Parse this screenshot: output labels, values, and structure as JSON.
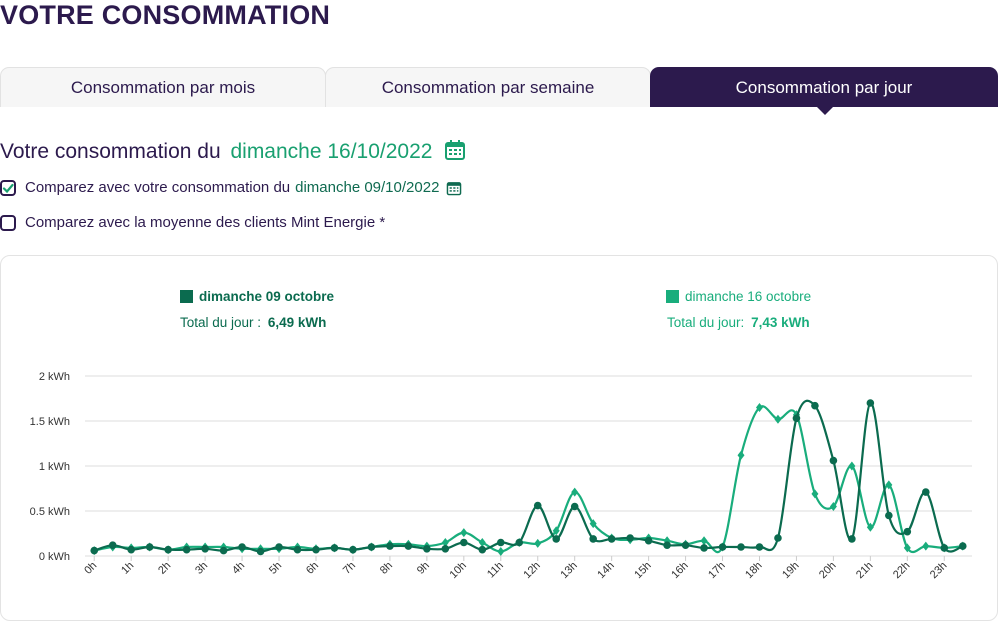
{
  "header": {
    "title": "VOTRE CONSOMMATION"
  },
  "tabs": [
    "Consommation par mois",
    "Consommation par semaine",
    "Consommation par jour"
  ],
  "active_tab": 2,
  "selection": {
    "label": "Votre consommation du",
    "date": "dimanche 16/10/2022"
  },
  "options": [
    {
      "label": "Comparez avec votre consommation du",
      "date": "dimanche 09/10/2022",
      "checked": true
    },
    {
      "label": "Comparez avec la moyenne des clients Mint Energie *",
      "checked": false
    }
  ],
  "chart_data": {
    "type": "line",
    "x": [
      0,
      0.5,
      1,
      1.5,
      2,
      2.5,
      3,
      3.5,
      4,
      4.5,
      5,
      5.5,
      6,
      6.5,
      7,
      7.5,
      8,
      8.5,
      9,
      9.5,
      10,
      10.5,
      11,
      11.5,
      12,
      12.5,
      13,
      13.5,
      14,
      14.5,
      15,
      15.5,
      16,
      16.5,
      17,
      17.5,
      18,
      18.5,
      19,
      19.5,
      20,
      20.5,
      21,
      21.5,
      22,
      22.5,
      23,
      23.5
    ],
    "xlim": [
      -0.25,
      23.75
    ],
    "xticks": [
      {
        "value": 0,
        "label": "0h"
      },
      {
        "value": 1,
        "label": "1h"
      },
      {
        "value": 2,
        "label": "2h"
      },
      {
        "value": 3,
        "label": "3h"
      },
      {
        "value": 4,
        "label": "4h"
      },
      {
        "value": 5,
        "label": "5h"
      },
      {
        "value": 6,
        "label": "6h"
      },
      {
        "value": 7,
        "label": "7h"
      },
      {
        "value": 8,
        "label": "8h"
      },
      {
        "value": 9,
        "label": "9h"
      },
      {
        "value": 10,
        "label": "10h"
      },
      {
        "value": 11,
        "label": "11h"
      },
      {
        "value": 12,
        "label": "12h"
      },
      {
        "value": 13,
        "label": "13h"
      },
      {
        "value": 14,
        "label": "14h"
      },
      {
        "value": 15,
        "label": "15h"
      },
      {
        "value": 16,
        "label": "16h"
      },
      {
        "value": 17,
        "label": "17h"
      },
      {
        "value": 18,
        "label": "18h"
      },
      {
        "value": 19,
        "label": "19h"
      },
      {
        "value": 20,
        "label": "20h"
      },
      {
        "value": 21,
        "label": "21h"
      },
      {
        "value": 22,
        "label": "22h"
      },
      {
        "value": 23,
        "label": "23h"
      }
    ],
    "ylim": [
      0,
      2
    ],
    "yticks": [
      {
        "value": 0,
        "label": "0 kWh"
      },
      {
        "value": 0.5,
        "label": "0.5 kWh"
      },
      {
        "value": 1,
        "label": "1 kWh"
      },
      {
        "value": 1.5,
        "label": "1.5 kWh"
      },
      {
        "value": 2,
        "label": "2 kWh"
      }
    ],
    "grid": true,
    "series": [
      {
        "name": "dimanche 09 octobre",
        "color": "#0b6b4f",
        "marker": "circle",
        "total_label": "Total du jour :",
        "total": "6,49 kWh",
        "values": [
          0.06,
          0.12,
          0.07,
          0.1,
          0.07,
          0.07,
          0.08,
          0.06,
          0.1,
          0.05,
          0.1,
          0.07,
          0.07,
          0.09,
          0.07,
          0.1,
          0.11,
          0.11,
          0.08,
          0.08,
          0.15,
          0.07,
          0.15,
          0.15,
          0.56,
          0.19,
          0.55,
          0.19,
          0.19,
          0.2,
          0.17,
          0.12,
          0.12,
          0.09,
          0.1,
          0.1,
          0.1,
          0.2,
          1.53,
          1.67,
          1.06,
          0.19,
          1.7,
          0.45,
          0.27,
          0.71,
          0.09,
          0.11
        ]
      },
      {
        "name": "dimanche 16 octobre",
        "color": "#19ad7c",
        "marker": "diamond",
        "total_label": "Total du jour:",
        "total": "7,43 kWh",
        "values": [
          0.06,
          0.1,
          0.09,
          0.1,
          0.07,
          0.1,
          0.1,
          0.1,
          0.08,
          0.08,
          0.08,
          0.1,
          0.08,
          0.09,
          0.07,
          0.1,
          0.13,
          0.13,
          0.11,
          0.15,
          0.26,
          0.15,
          0.05,
          0.15,
          0.14,
          0.28,
          0.71,
          0.36,
          0.2,
          0.18,
          0.2,
          0.17,
          0.13,
          0.17,
          0.1,
          1.12,
          1.65,
          1.52,
          1.57,
          0.69,
          0.55,
          1.0,
          0.32,
          0.79,
          0.09,
          0.11,
          0.09,
          0.11
        ]
      }
    ]
  }
}
